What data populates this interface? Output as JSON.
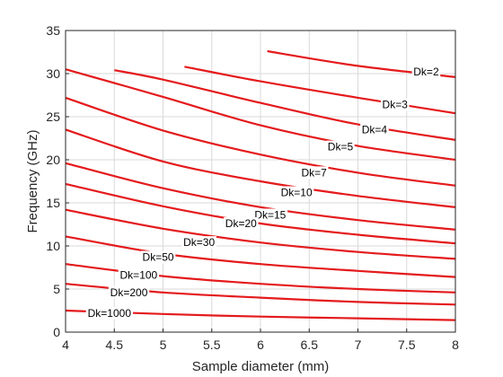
{
  "chart_data": {
    "type": "line",
    "title": "",
    "xlabel": "Sample diameter (mm)",
    "ylabel": "Frequency (GHz)",
    "xlim": [
      4,
      8
    ],
    "ylim": [
      0,
      35
    ],
    "xticks": [
      4,
      4.5,
      5,
      5.5,
      6,
      6.5,
      7,
      7.5,
      8
    ],
    "xtick_labels": [
      "4",
      "4.5",
      "5",
      "5.5",
      "6",
      "6.5",
      "7",
      "7.5",
      "8"
    ],
    "yticks": [
      0,
      5,
      10,
      15,
      20,
      25,
      30,
      35
    ],
    "ytick_labels": [
      "0",
      "5",
      "10",
      "15",
      "20",
      "25",
      "30",
      "35"
    ],
    "grid": true,
    "line_color": "#e41a1c",
    "series": [
      {
        "name": "Dk=2",
        "x": [
          6.07,
          7.0,
          8.0
        ],
        "y": [
          32.6,
          30.9,
          29.6
        ],
        "label_at": [
          7.7,
          30.2
        ]
      },
      {
        "name": "Dk=3",
        "x": [
          5.22,
          6.0,
          7.0,
          8.0
        ],
        "y": [
          30.8,
          29.1,
          27.2,
          25.4
        ],
        "label_at": [
          7.38,
          26.4
        ]
      },
      {
        "name": "Dk=4",
        "x": [
          4.5,
          5.0,
          6.0,
          7.0,
          8.0
        ],
        "y": [
          30.4,
          29.3,
          26.6,
          24.1,
          22.3
        ],
        "label_at": [
          7.17,
          23.5
        ]
      },
      {
        "name": "Dk=5",
        "x": [
          4.0,
          5.0,
          6.0,
          7.0,
          8.0
        ],
        "y": [
          30.5,
          27.3,
          24.0,
          21.6,
          20.0
        ],
        "label_at": [
          6.82,
          21.5
        ]
      },
      {
        "name": "Dk=7",
        "x": [
          4.0,
          5.0,
          6.0,
          7.0,
          8.0
        ],
        "y": [
          27.2,
          23.4,
          20.6,
          18.5,
          17.0
        ],
        "label_at": [
          6.55,
          18.5
        ]
      },
      {
        "name": "Dk=10",
        "x": [
          4.0,
          5.0,
          6.0,
          7.0,
          8.0
        ],
        "y": [
          23.5,
          19.8,
          17.5,
          15.8,
          14.5
        ],
        "label_at": [
          6.37,
          16.2
        ]
      },
      {
        "name": "Dk=15",
        "x": [
          4.0,
          5.0,
          6.0,
          7.0,
          8.0
        ],
        "y": [
          19.6,
          16.7,
          14.5,
          13.0,
          11.9
        ],
        "label_at": [
          6.1,
          13.6
        ]
      },
      {
        "name": "Dk=20",
        "x": [
          4.0,
          5.0,
          6.0,
          7.0,
          8.0
        ],
        "y": [
          17.2,
          14.6,
          12.6,
          11.3,
          10.3
        ],
        "label_at": [
          5.8,
          12.6
        ]
      },
      {
        "name": "Dk=30",
        "x": [
          4.0,
          5.0,
          6.0,
          7.0,
          8.0
        ],
        "y": [
          14.2,
          12.0,
          10.4,
          9.3,
          8.5
        ],
        "label_at": [
          5.37,
          10.4
        ]
      },
      {
        "name": "Dk=50",
        "x": [
          4.0,
          5.0,
          6.0,
          7.0,
          8.0
        ],
        "y": [
          11.1,
          9.1,
          7.9,
          7.1,
          6.4
        ],
        "label_at": [
          4.95,
          8.7
        ]
      },
      {
        "name": "Dk=100",
        "x": [
          4.0,
          5.0,
          6.0,
          7.0,
          8.0
        ],
        "y": [
          7.9,
          6.5,
          5.6,
          5.0,
          4.6
        ],
        "label_at": [
          4.75,
          6.6
        ]
      },
      {
        "name": "Dk=200",
        "x": [
          4.0,
          5.0,
          6.0,
          7.0,
          8.0
        ],
        "y": [
          5.6,
          4.6,
          4.0,
          3.5,
          3.2
        ],
        "label_at": [
          4.65,
          4.6
        ]
      },
      {
        "name": "Dk=1000",
        "x": [
          4.0,
          5.0,
          6.0,
          7.0,
          8.0
        ],
        "y": [
          2.5,
          2.1,
          1.8,
          1.6,
          1.4
        ],
        "label_at": [
          4.45,
          2.2
        ]
      }
    ]
  }
}
